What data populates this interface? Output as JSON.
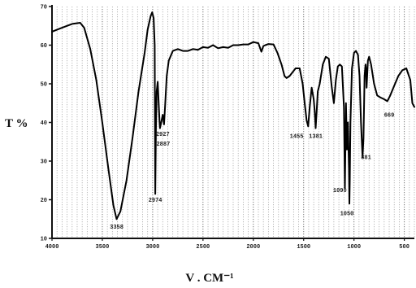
{
  "chart_data": {
    "type": "line",
    "title": "",
    "ylabel": "T %",
    "xlabel": "V . CM⁻¹",
    "xlim": [
      4000,
      400
    ],
    "ylim": [
      10,
      70
    ],
    "x_reversed": true,
    "grid": true,
    "x_ticks": [
      {
        "value": 4000,
        "label": "4000"
      },
      {
        "value": 3500,
        "label": "3500"
      },
      {
        "value": 3000,
        "label": "3000"
      },
      {
        "value": 2500,
        "label": "2500"
      },
      {
        "value": 2000,
        "label": "2000"
      },
      {
        "value": 1500,
        "label": "1500"
      },
      {
        "value": 1000,
        "label": "1000"
      },
      {
        "value": 500,
        "label": "500"
      }
    ],
    "y_ticks": [
      {
        "value": 10,
        "label": "10"
      },
      {
        "value": 20,
        "label": "20"
      },
      {
        "value": 30,
        "label": "30"
      },
      {
        "value": 40,
        "label": "40"
      },
      {
        "value": 50,
        "label": "50"
      },
      {
        "value": 60,
        "label": "60"
      },
      {
        "value": 70,
        "label": "70"
      }
    ],
    "series": [
      {
        "color": "#000000",
        "x": [
          4000,
          3900,
          3800,
          3720,
          3680,
          3620,
          3560,
          3500,
          3440,
          3390,
          3358,
          3320,
          3260,
          3200,
          3140,
          3080,
          3050,
          3020,
          3005,
          2990,
          2980,
          2974,
          2968,
          2960,
          2950,
          2940,
          2932,
          2927,
          2915,
          2900,
          2887,
          2875,
          2860,
          2840,
          2800,
          2750,
          2700,
          2650,
          2600,
          2550,
          2500,
          2450,
          2400,
          2350,
          2300,
          2250,
          2200,
          2150,
          2100,
          2050,
          2000,
          1950,
          1920,
          1900,
          1880,
          1850,
          1800,
          1760,
          1720,
          1690,
          1670,
          1640,
          1610,
          1580,
          1540,
          1510,
          1490,
          1470,
          1455,
          1440,
          1420,
          1400,
          1390,
          1381,
          1370,
          1360,
          1340,
          1310,
          1280,
          1250,
          1220,
          1200,
          1180,
          1160,
          1140,
          1120,
          1100,
          1090,
          1080,
          1070,
          1060,
          1050,
          1046,
          1042,
          1035,
          1020,
          1000,
          980,
          960,
          945,
          930,
          915,
          905,
          895,
          885,
          881,
          875,
          862,
          850,
          830,
          800,
          770,
          740,
          700,
          669,
          640,
          600,
          560,
          520,
          480,
          440,
          420,
          400
        ],
        "y": [
          63.5,
          64.5,
          65.5,
          65.8,
          64.5,
          59,
          51,
          40,
          28,
          18.5,
          15,
          17,
          25,
          36,
          48,
          58,
          64,
          67.5,
          68.5,
          67,
          60,
          21.5,
          38,
          48,
          50.5,
          45,
          40.5,
          38.5,
          40,
          42,
          39.5,
          45,
          52,
          56,
          58.5,
          59,
          58.5,
          58.5,
          59,
          58.8,
          59.5,
          59.3,
          60,
          59.2,
          59.5,
          59.3,
          60,
          60,
          60.2,
          60.2,
          60.8,
          60.5,
          58.3,
          59.8,
          60,
          60.3,
          60.2,
          58,
          55,
          52,
          51.5,
          52,
          53,
          54,
          54,
          50,
          45,
          40.5,
          39,
          44,
          49,
          46,
          43,
          38.5,
          43,
          48,
          50,
          55,
          57,
          56.5,
          49,
          45,
          51,
          54.5,
          55,
          54.5,
          44,
          23,
          45,
          33,
          40,
          28,
          19,
          25,
          40,
          54,
          58,
          58.5,
          57.5,
          52,
          40,
          31,
          36,
          52,
          55,
          54,
          49,
          56,
          57,
          55,
          50,
          47,
          46.5,
          46,
          45.5,
          47,
          49.5,
          52,
          53.5,
          54,
          51,
          45,
          44
        ]
      }
    ],
    "peak_labels": [
      {
        "text": "3358",
        "x": 3358,
        "y": 12.5
      },
      {
        "text": "2974",
        "x": 2974,
        "y": 19.5
      },
      {
        "text": "2927",
        "x": 2900,
        "y": 36.5
      },
      {
        "text": "2887",
        "x": 2895,
        "y": 34
      },
      {
        "text": "1455",
        "x": 1570,
        "y": 36
      },
      {
        "text": "1381",
        "x": 1380,
        "y": 36
      },
      {
        "text": "1090",
        "x": 1140,
        "y": 22
      },
      {
        "text": "1050",
        "x": 1070,
        "y": 16
      },
      {
        "text": "881",
        "x": 880,
        "y": 30.5
      },
      {
        "text": "669",
        "x": 650,
        "y": 41.5
      }
    ]
  }
}
